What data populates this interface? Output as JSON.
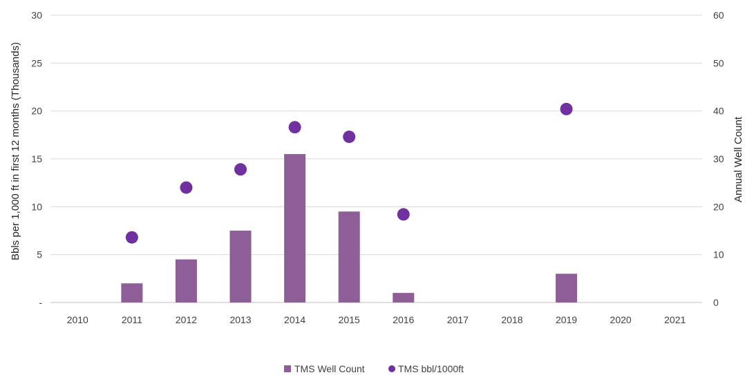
{
  "chart_data": {
    "type": "bar",
    "categories": [
      "2010",
      "2011",
      "2012",
      "2013",
      "2014",
      "2015",
      "2016",
      "2017",
      "2018",
      "2019",
      "2020",
      "2021"
    ],
    "series": [
      {
        "name": "TMS Well Count",
        "type": "bar",
        "axis": "right",
        "color": "#8E5F97",
        "values": [
          0,
          4,
          9,
          15,
          31,
          19,
          2,
          0,
          0,
          6,
          0,
          0
        ]
      },
      {
        "name": "TMS bbl/1000ft",
        "type": "scatter",
        "axis": "left",
        "color": "#7030A0",
        "values": [
          null,
          6.8,
          12.0,
          13.9,
          18.3,
          17.3,
          9.2,
          null,
          null,
          20.2,
          null,
          null
        ]
      }
    ],
    "ylabel": "Bbls per 1,000 ft in first 12 months (Thousands)",
    "ylabel_right": "Annual Well Count",
    "ylim": [
      0,
      30
    ],
    "ylim_right": [
      0,
      60
    ],
    "yticks": [
      "-",
      "5",
      "10",
      "15",
      "20",
      "25",
      "30"
    ],
    "yticks_right": [
      "0",
      "10",
      "20",
      "30",
      "40",
      "50",
      "60"
    ],
    "grid": true,
    "legend_position": "bottom"
  }
}
